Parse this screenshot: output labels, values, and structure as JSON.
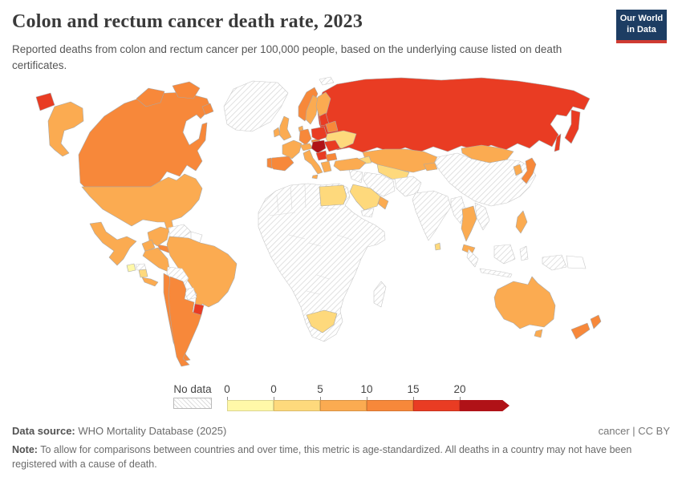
{
  "header": {
    "title": "Colon and rectum cancer death rate, 2023",
    "subtitle": "Reported deaths from colon and rectum cancer per 100,000 people, based on the underlying cause listed on death certificates.",
    "logo": {
      "line1": "Our World",
      "line2": "in Data",
      "bg_color": "#1d3d63",
      "accent_color": "#cf3b32"
    }
  },
  "legend": {
    "no_data_label": "No data",
    "ticks": [
      "0",
      "0",
      "5",
      "10",
      "15",
      "20"
    ],
    "bins": [
      {
        "id": "bin0",
        "label": "0",
        "color": "#FFF8A8"
      },
      {
        "id": "bin1",
        "label": "0–5",
        "color": "#FED97C"
      },
      {
        "id": "bin2",
        "label": "5–10",
        "color": "#FBAB51"
      },
      {
        "id": "bin3",
        "label": "10–15",
        "color": "#F7883A"
      },
      {
        "id": "bin4",
        "label": "15–20",
        "color": "#E93C23"
      },
      {
        "id": "bin5",
        "label": "20+",
        "color": "#B01217"
      }
    ]
  },
  "map": {
    "ocean_color": "#ffffff",
    "no_data_pattern": "diagonal-hatch",
    "regions": {
      "russia": "bin4",
      "russia-kamchatka": "bin4",
      "russia-sakhalin": "bin4",
      "russia-chukotka-fragment": "bin4",
      "canada": "bin3",
      "canada-arctic-islands": "bin3",
      "alaska": "bin2",
      "usa": "bin2",
      "mexico": "bin2",
      "greenland": "no-data",
      "svalbard": "no-data",
      "guatemala": "bin0",
      "honduras": "no-data",
      "nicaragua": "bin1",
      "costa-rica-panama": "bin2",
      "cuba": "bin3",
      "hispaniola": "bin1",
      "colombia": "bin2",
      "venezuela": "no-data",
      "guyanas": "none",
      "ecuador": "bin2",
      "peru": "bin2",
      "brazil": "bin2",
      "bolivia": "no-data",
      "paraguay": "no-data",
      "chile": "bin3",
      "argentina": "bin3",
      "uruguay": "bin4",
      "africa": "no-data",
      "egypt": "bin1",
      "south-africa": "bin1",
      "madagascar": "no-data",
      "iceland": "bin2",
      "norway": "bin3",
      "sweden": "bin2",
      "finland": "bin2",
      "denmark": "bin2",
      "united-kingdom": "bin2",
      "ireland": "bin2",
      "france": "bin2",
      "spain": "bin3",
      "portugal": "bin3",
      "germany": "bin3",
      "austria-switzerland": "bin2",
      "italy": "bin2",
      "sicily": "bin2",
      "czechia": "bin3",
      "poland": "bin4",
      "baltics": "bin4",
      "belarus": "bin3",
      "ukraine": "bin1",
      "romania": "bin4",
      "hungary-croatia-slovakia": "bin5",
      "serbia-bosnia": "bin4",
      "bulgaria": "bin3",
      "greece": "bin2",
      "turkey": "bin2",
      "kazakhstan": "bin2",
      "uzbekistan-turkmenistan": "bin1",
      "kyrgyzstan-tajikistan": "bin2",
      "caucasus": "bin1",
      "iran": "no-data",
      "iraq-syria": "no-data",
      "saudi-arabia": "bin1",
      "gulf-states": "bin2",
      "yemen": "no-data",
      "afghanistan-pakistan": "no-data",
      "india": "no-data",
      "sri-lanka": "bin1",
      "myanmar-bangladesh": "no-data",
      "china": "no-data",
      "mongolia": "bin2",
      "south-korea": "bin2",
      "japan": "bin3",
      "thailand": "bin2",
      "vietnam-laos": "no-data",
      "malaysia": "bin2",
      "philippines": "bin2",
      "indonesia": "no-data",
      "papua-new-guinea": "none",
      "australia": "bin2",
      "tasmania": "bin2",
      "new-zealand": "bin3"
    }
  },
  "footer": {
    "source_label": "Data source:",
    "source_text": " WHO Mortality Database (2025)",
    "right_text": "cancer | CC BY",
    "note_label": "Note:",
    "note_text": " To allow for comparisons between countries and over time, this metric is age-standardized. All deaths in a country may not have been registered with a cause of death."
  },
  "chart_data": {
    "type": "choropleth",
    "title": "Colon and rectum cancer death rate, 2023",
    "subtitle": "Reported deaths from colon and rectum cancer per 100,000 people, based on the underlying cause listed on death certificates.",
    "unit": "deaths per 100,000 people (age-standardized)",
    "year": "2023",
    "legend_bins": [
      "No data",
      "0",
      "0–5",
      "5–10",
      "10–15",
      "15–20",
      "20+"
    ],
    "legend_colors": [
      "hatch",
      "#FFF8A8",
      "#FED97C",
      "#FBAB51",
      "#F7883A",
      "#E93C23",
      "#B01217"
    ],
    "values_by_region": {
      "Russia": "15–20",
      "Canada": "10–15",
      "United States": "5–10",
      "Mexico": "5–10",
      "Greenland": "No data",
      "Guatemala": "0",
      "Nicaragua": "0–5",
      "Cuba": "10–15",
      "Colombia": "5–10",
      "Venezuela": "No data",
      "Ecuador": "5–10",
      "Peru": "5–10",
      "Brazil": "5–10",
      "Bolivia": "No data",
      "Paraguay": "No data",
      "Chile": "10–15",
      "Argentina": "10–15",
      "Uruguay": "15–20",
      "Most of Africa": "No data",
      "Egypt": "0–5",
      "South Africa": "0–5",
      "Iceland": "5–10",
      "Norway": "10–15",
      "Sweden": "5–10",
      "Finland": "5–10",
      "United Kingdom": "5–10",
      "Ireland": "5–10",
      "France": "5–10",
      "Spain": "10–15",
      "Portugal": "10–15",
      "Germany": "10–15",
      "Italy": "5–10",
      "Czechia": "10–15",
      "Poland": "15–20",
      "Baltic states": "15–20",
      "Belarus": "10–15",
      "Ukraine": "0–5",
      "Hungary": "20+",
      "Croatia": "20+",
      "Slovakia": "20+",
      "Serbia": "15–20",
      "Romania": "15–20",
      "Bulgaria": "10–15",
      "Greece": "5–10",
      "Turkey": "5–10",
      "Kazakhstan": "5–10",
      "Uzbekistan": "0–5",
      "Saudi Arabia": "0–5",
      "Iran": "No data",
      "Afghanistan": "No data",
      "Pakistan": "No data",
      "India": "No data",
      "China": "No data",
      "Mongolia": "5–10",
      "South Korea": "5–10",
      "Japan": "10–15",
      "Thailand": "5–10",
      "Vietnam": "No data",
      "Malaysia": "5–10",
      "Philippines": "5–10",
      "Indonesia": "No data",
      "Australia": "5–10",
      "New Zealand": "10–15"
    }
  }
}
